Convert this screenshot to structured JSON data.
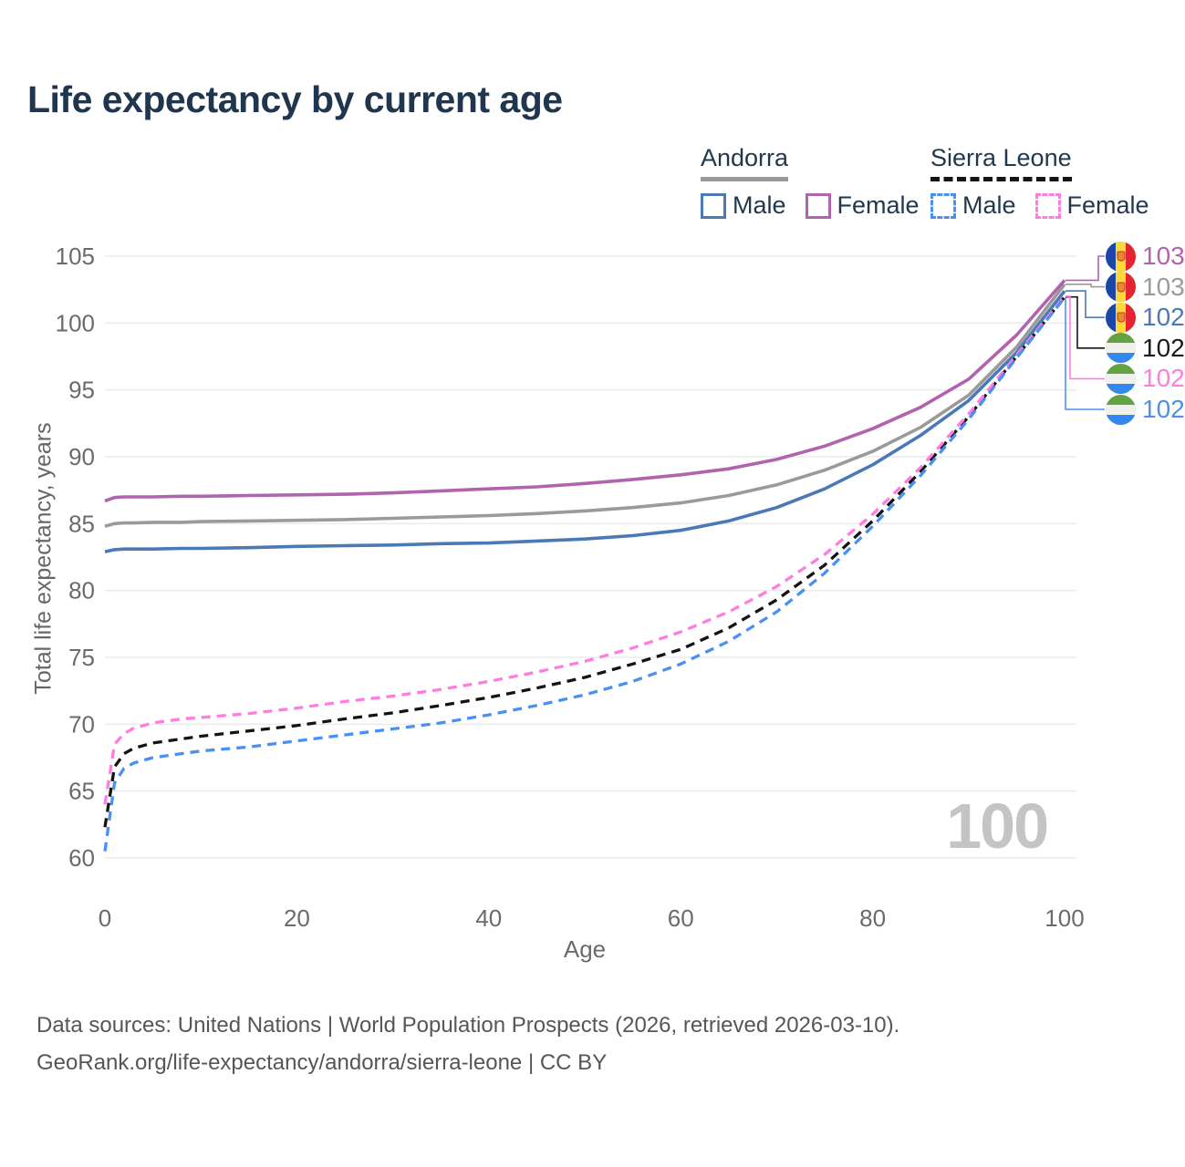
{
  "title": "Life expectancy by current age",
  "watermark": "100",
  "legend": {
    "groups": [
      {
        "label": "Andorra",
        "color": "#9a9a9a",
        "style": "solid"
      },
      {
        "label": "Sierra Leone",
        "color": "#141414",
        "style": "dashed"
      }
    ],
    "items": [
      {
        "label": "Male",
        "group": "Andorra",
        "color": "#4a79b6",
        "dashed": false
      },
      {
        "label": "Female",
        "group": "Andorra",
        "color": "#b163ae",
        "dashed": false
      },
      {
        "label": "Male",
        "group": "Sierra Leone",
        "color": "#4890f2",
        "dashed": true
      },
      {
        "label": "Female",
        "group": "Sierra Leone",
        "color": "#ff7ce0",
        "dashed": true
      }
    ]
  },
  "footer": {
    "line1": "Data sources: United Nations | World Population Prospects (2026, retrieved 2026-03-10).",
    "line2": "GeoRank.org/life-expectancy/andorra/sierra-leone | CC BY"
  },
  "chart_data": {
    "type": "line",
    "title": "Life expectancy by current age",
    "xlabel": "Age",
    "ylabel": "Total life expectancy, years",
    "xlim": [
      0,
      100
    ],
    "ylim": [
      60,
      105
    ],
    "x_ticks": [
      0,
      20,
      40,
      60,
      80,
      100
    ],
    "y_ticks": [
      60,
      65,
      70,
      75,
      80,
      85,
      90,
      95,
      100,
      105
    ],
    "grid": "horizontal",
    "legend_position": "top-right",
    "x": [
      0,
      1,
      2,
      3,
      5,
      8,
      10,
      15,
      20,
      25,
      30,
      35,
      40,
      45,
      50,
      55,
      60,
      65,
      70,
      75,
      80,
      85,
      90,
      95,
      100
    ],
    "series": [
      {
        "id": "andorra-female",
        "name": "Andorra Female",
        "color": "#b163ae",
        "dash": false,
        "values": [
          86.7,
          86.95,
          87.0,
          87.0,
          87.0,
          87.05,
          87.05,
          87.1,
          87.15,
          87.2,
          87.3,
          87.45,
          87.6,
          87.75,
          88.0,
          88.3,
          88.65,
          89.1,
          89.8,
          90.8,
          92.1,
          93.7,
          95.8,
          99.1,
          103.2
        ]
      },
      {
        "id": "andorra",
        "name": "Andorra (both sexes)",
        "color": "#9a9a9a",
        "dash": false,
        "values": [
          84.8,
          85.0,
          85.05,
          85.05,
          85.1,
          85.1,
          85.15,
          85.2,
          85.25,
          85.3,
          85.4,
          85.5,
          85.6,
          85.75,
          85.95,
          86.2,
          86.55,
          87.1,
          87.9,
          89.0,
          90.4,
          92.2,
          94.6,
          98.2,
          102.9
        ]
      },
      {
        "id": "andorra-male",
        "name": "Andorra Male",
        "color": "#4a79b6",
        "dash": false,
        "values": [
          82.9,
          83.05,
          83.1,
          83.1,
          83.1,
          83.15,
          83.15,
          83.2,
          83.3,
          83.35,
          83.4,
          83.5,
          83.55,
          83.7,
          83.85,
          84.1,
          84.5,
          85.2,
          86.2,
          87.6,
          89.4,
          91.6,
          94.2,
          97.8,
          102.4
        ]
      },
      {
        "id": "sierra-leone",
        "name": "Sierra Leone (both sexes)",
        "color": "#141414",
        "dash": true,
        "values": [
          62.3,
          66.8,
          67.8,
          68.2,
          68.6,
          68.9,
          69.1,
          69.5,
          69.9,
          70.4,
          70.85,
          71.4,
          72.0,
          72.7,
          73.5,
          74.5,
          75.6,
          77.2,
          79.3,
          81.9,
          85.2,
          88.9,
          93.0,
          97.5,
          101.95
        ]
      },
      {
        "id": "sierra-leone-female",
        "name": "Sierra Leone Female",
        "color": "#ff7ce0",
        "dash": true,
        "values": [
          64.0,
          68.5,
          69.3,
          69.7,
          70.1,
          70.4,
          70.5,
          70.8,
          71.2,
          71.7,
          72.1,
          72.6,
          73.2,
          73.9,
          74.7,
          75.7,
          76.9,
          78.4,
          80.3,
          82.7,
          85.7,
          89.2,
          93.2,
          97.6,
          102.0
        ]
      },
      {
        "id": "sierra-leone-male",
        "name": "Sierra Leone Male",
        "color": "#4890f2",
        "dash": true,
        "values": [
          60.5,
          65.6,
          66.7,
          67.1,
          67.5,
          67.8,
          68.0,
          68.3,
          68.75,
          69.2,
          69.65,
          70.1,
          70.7,
          71.4,
          72.2,
          73.2,
          74.5,
          76.2,
          78.4,
          81.3,
          84.8,
          88.6,
          92.8,
          97.4,
          101.9
        ]
      }
    ],
    "end_labels": [
      {
        "value": "103",
        "color": "#b163ae",
        "flag": "andorra",
        "series": 0
      },
      {
        "value": "103",
        "color": "#9a9a9a",
        "flag": "andorra",
        "series": 1
      },
      {
        "value": "102",
        "color": "#4a79b6",
        "flag": "andorra",
        "series": 2
      },
      {
        "value": "102",
        "color": "#1a1a1a",
        "flag": "sierra-leone",
        "series": 3
      },
      {
        "value": "102",
        "color": "#ff7ce0",
        "flag": "sierra-leone",
        "series": 4
      },
      {
        "value": "102",
        "color": "#4890f2",
        "flag": "sierra-leone",
        "series": 5
      }
    ]
  }
}
